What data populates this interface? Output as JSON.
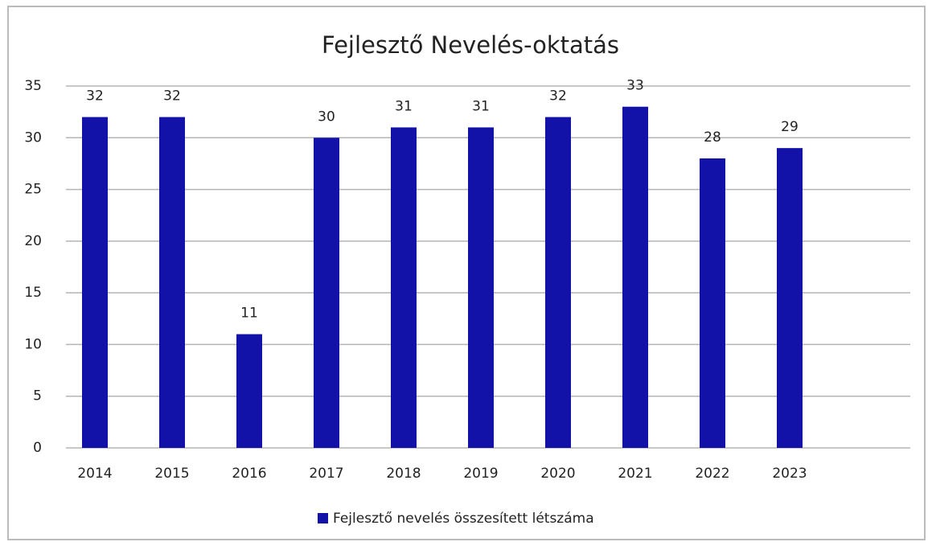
{
  "chart_data": {
    "type": "bar",
    "title": "Fejlesztő Nevelés-oktatás",
    "categories": [
      "2014",
      "2015",
      "2016",
      "2017",
      "2018",
      "2019",
      "2020",
      "2021",
      "2022",
      "2023"
    ],
    "series": [
      {
        "name": "Fejlesztő nevelés összesített létszáma",
        "color": "#1212a8",
        "values": [
          32,
          32,
          11,
          30,
          31,
          31,
          32,
          33,
          28,
          29
        ]
      }
    ],
    "ylim": [
      0,
      35
    ],
    "yticks": [
      0,
      5,
      10,
      15,
      20,
      25,
      30,
      35
    ],
    "grid": true,
    "legend": "bottom",
    "data_labels": true
  }
}
